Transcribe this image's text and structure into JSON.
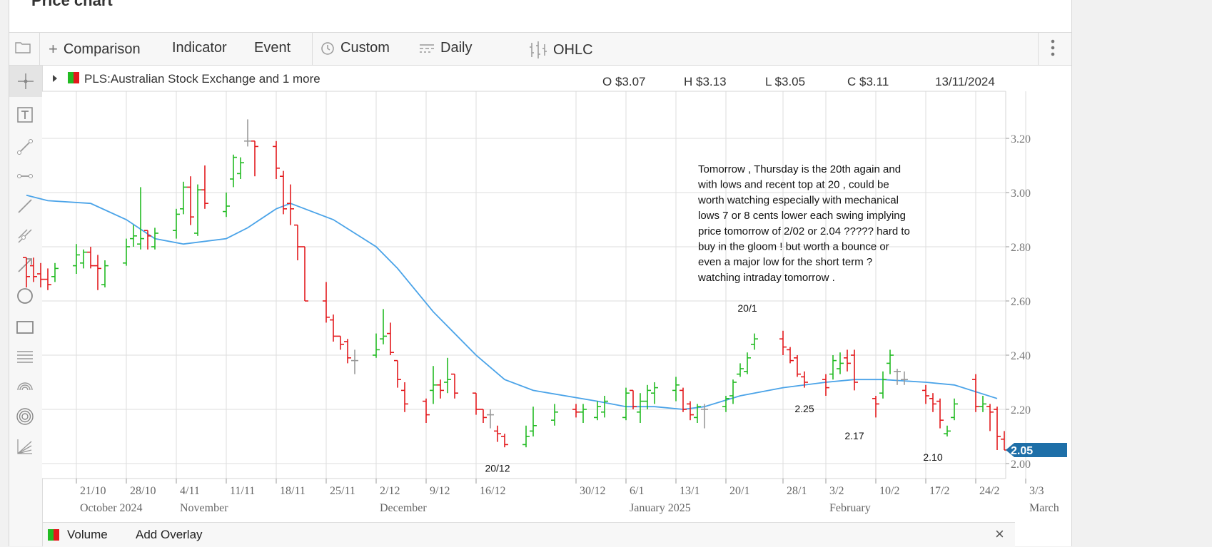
{
  "page": {
    "title": "Price chart"
  },
  "toolbar": {
    "comparison": "Comparison",
    "indicator": "Indicator",
    "event": "Event",
    "custom": "Custom",
    "daily": "Daily",
    "ohlc": "OHLC"
  },
  "legend": {
    "symbol": "PLS:Australian Stock Exchange and 1 more",
    "open": "O $3.07",
    "high": "H $3.13",
    "low": "L $3.05",
    "close": "C $3.11",
    "date": "13/11/2024"
  },
  "bottom": {
    "volume": "Volume",
    "add_overlay": "Add Overlay"
  },
  "colors": {
    "up": "#22bb22",
    "down": "#e3191c",
    "neutral": "#999999",
    "ma": "#4aa3e8",
    "last_price_bg": "#1e6fa8"
  },
  "chart_data": {
    "type": "ohlc",
    "frequency": "daily",
    "last_price": "2.05",
    "y_ticks": [
      "3.20",
      "3.00",
      "2.80",
      "2.60",
      "2.40",
      "2.20",
      "2.00"
    ],
    "ylim": [
      1.95,
      3.35
    ],
    "x_ticks": [
      {
        "label": "21/10",
        "date": "2024-10-21"
      },
      {
        "label": "28/10",
        "date": "2024-10-28"
      },
      {
        "label": "4/11",
        "date": "2024-11-04"
      },
      {
        "label": "11/11",
        "date": "2024-11-11"
      },
      {
        "label": "18/11",
        "date": "2024-11-18"
      },
      {
        "label": "25/11",
        "date": "2024-11-25"
      },
      {
        "label": "2/12",
        "date": "2024-12-02"
      },
      {
        "label": "9/12",
        "date": "2024-12-09"
      },
      {
        "label": "16/12",
        "date": "2024-12-16"
      },
      {
        "label": "30/12",
        "date": "2024-12-30"
      },
      {
        "label": "6/1",
        "date": "2025-01-06"
      },
      {
        "label": "13/1",
        "date": "2025-01-13"
      },
      {
        "label": "20/1",
        "date": "2025-01-20"
      },
      {
        "label": "28/1",
        "date": "2025-01-28"
      },
      {
        "label": "3/2",
        "date": "2025-02-03"
      },
      {
        "label": "10/2",
        "date": "2025-02-10"
      },
      {
        "label": "17/2",
        "date": "2025-02-17"
      },
      {
        "label": "24/2",
        "date": "2025-02-24"
      },
      {
        "label": "3/3",
        "date": "2025-03-03"
      }
    ],
    "month_labels": [
      {
        "label": "October 2024",
        "date": "2024-10-21"
      },
      {
        "label": "November",
        "date": "2024-11-04"
      },
      {
        "label": "December",
        "date": "2024-12-02"
      },
      {
        "label": "January 2025",
        "date": "2025-01-06"
      },
      {
        "label": "February",
        "date": "2025-02-03"
      },
      {
        "label": "March",
        "date": "2025-03-03"
      }
    ],
    "bars": [
      {
        "d": "2024-10-14",
        "o": 2.76,
        "h": 2.76,
        "l": 2.65,
        "c": 2.69
      },
      {
        "d": "2024-10-15",
        "o": 2.73,
        "h": 2.76,
        "l": 2.67,
        "c": 2.69
      },
      {
        "d": "2024-10-16",
        "o": 2.7,
        "h": 2.74,
        "l": 2.65,
        "c": 2.68
      },
      {
        "d": "2024-10-17",
        "o": 2.68,
        "h": 2.72,
        "l": 2.64,
        "c": 2.66
      },
      {
        "d": "2024-10-18",
        "o": 2.69,
        "h": 2.74,
        "l": 2.67,
        "c": 2.72
      },
      {
        "d": "2024-10-21",
        "o": 2.73,
        "h": 2.81,
        "l": 2.7,
        "c": 2.77
      },
      {
        "d": "2024-10-22",
        "o": 2.74,
        "h": 2.79,
        "l": 2.72,
        "c": 2.78
      },
      {
        "d": "2024-10-23",
        "o": 2.78,
        "h": 2.8,
        "l": 2.72,
        "c": 2.73
      },
      {
        "d": "2024-10-24",
        "o": 2.73,
        "h": 2.77,
        "l": 2.64,
        "c": 2.72
      },
      {
        "d": "2024-10-25",
        "o": 2.66,
        "h": 2.75,
        "l": 2.65,
        "c": 2.73
      },
      {
        "d": "2024-10-28",
        "o": 2.74,
        "h": 2.83,
        "l": 2.73,
        "c": 2.8
      },
      {
        "d": "2024-10-29",
        "o": 2.83,
        "h": 2.88,
        "l": 2.8,
        "c": 2.84
      },
      {
        "d": "2024-10-30",
        "o": 2.81,
        "h": 3.02,
        "l": 2.79,
        "c": 2.83
      },
      {
        "d": "2024-10-31",
        "o": 2.86,
        "h": 2.86,
        "l": 2.79,
        "c": 2.84
      },
      {
        "d": "2024-11-01",
        "o": 2.8,
        "h": 2.87,
        "l": 2.79,
        "c": 2.85
      },
      {
        "d": "2024-11-04",
        "o": 2.86,
        "h": 2.94,
        "l": 2.83,
        "c": 2.92
      },
      {
        "d": "2024-11-05",
        "o": 2.94,
        "h": 3.04,
        "l": 2.92,
        "c": 3.02
      },
      {
        "d": "2024-11-06",
        "o": 3.02,
        "h": 3.06,
        "l": 2.88,
        "c": 2.91
      },
      {
        "d": "2024-11-07",
        "o": 2.85,
        "h": 3.03,
        "l": 2.84,
        "c": 3.01
      },
      {
        "d": "2024-11-08",
        "o": 3.01,
        "h": 3.1,
        "l": 2.94,
        "c": 2.96
      },
      {
        "d": "2024-11-11",
        "o": 2.93,
        "h": 3.0,
        "l": 2.91,
        "c": 2.95
      },
      {
        "d": "2024-11-12",
        "o": 3.05,
        "h": 3.14,
        "l": 3.02,
        "c": 3.13
      },
      {
        "d": "2024-11-13",
        "o": 3.07,
        "h": 3.13,
        "l": 3.05,
        "c": 3.11
      },
      {
        "d": "2024-11-14",
        "o": 3.19,
        "h": 3.27,
        "l": 3.17,
        "c": 3.19
      },
      {
        "d": "2024-11-15",
        "o": 3.19,
        "h": 3.19,
        "l": 3.06,
        "c": 3.17
      },
      {
        "d": "2024-11-18",
        "o": 3.17,
        "h": 3.19,
        "l": 3.05,
        "c": 3.09
      },
      {
        "d": "2024-11-19",
        "o": 3.06,
        "h": 3.08,
        "l": 2.92,
        "c": 2.94
      },
      {
        "d": "2024-11-20",
        "o": 2.96,
        "h": 3.03,
        "l": 2.88,
        "c": 2.94
      },
      {
        "d": "2024-11-21",
        "o": 2.88,
        "h": 2.88,
        "l": 2.75,
        "c": 2.8
      },
      {
        "d": "2024-11-22",
        "o": 2.8,
        "h": 2.8,
        "l": 2.6,
        "c": 2.6
      },
      {
        "d": "2024-11-25",
        "o": 2.6,
        "h": 2.67,
        "l": 2.52,
        "c": 2.54
      },
      {
        "d": "2024-11-26",
        "o": 2.53,
        "h": 2.55,
        "l": 2.45,
        "c": 2.47
      },
      {
        "d": "2024-11-27",
        "o": 2.47,
        "h": 2.47,
        "l": 2.42,
        "c": 2.44
      },
      {
        "d": "2024-11-28",
        "o": 2.45,
        "h": 2.46,
        "l": 2.37,
        "c": 2.39
      },
      {
        "d": "2024-11-29",
        "o": 2.38,
        "h": 2.42,
        "l": 2.33,
        "c": 2.38
      },
      {
        "d": "2024-12-02",
        "o": 2.4,
        "h": 2.48,
        "l": 2.39,
        "c": 2.42
      },
      {
        "d": "2024-12-03",
        "o": 2.46,
        "h": 2.57,
        "l": 2.44,
        "c": 2.47
      },
      {
        "d": "2024-12-04",
        "o": 2.48,
        "h": 2.52,
        "l": 2.4,
        "c": 2.41
      },
      {
        "d": "2024-12-05",
        "o": 2.38,
        "h": 2.38,
        "l": 2.28,
        "c": 2.31
      },
      {
        "d": "2024-12-06",
        "o": 2.27,
        "h": 2.3,
        "l": 2.19,
        "c": 2.22
      },
      {
        "d": "2024-12-09",
        "o": 2.23,
        "h": 2.24,
        "l": 2.15,
        "c": 2.18
      },
      {
        "d": "2024-12-10",
        "o": 2.27,
        "h": 2.36,
        "l": 2.22,
        "c": 2.29
      },
      {
        "d": "2024-12-11",
        "o": 2.29,
        "h": 2.31,
        "l": 2.24,
        "c": 2.27
      },
      {
        "d": "2024-12-12",
        "o": 2.3,
        "h": 2.39,
        "l": 2.26,
        "c": 2.31
      },
      {
        "d": "2024-12-13",
        "o": 2.33,
        "h": 2.33,
        "l": 2.24,
        "c": 2.26
      },
      {
        "d": "2024-12-16",
        "o": 2.26,
        "h": 2.26,
        "l": 2.18,
        "c": 2.2
      },
      {
        "d": "2024-12-17",
        "o": 2.2,
        "h": 2.2,
        "l": 2.15,
        "c": 2.17
      },
      {
        "d": "2024-12-18",
        "o": 2.18,
        "h": 2.2,
        "l": 2.13,
        "c": 2.18
      },
      {
        "d": "2024-12-19",
        "o": 2.12,
        "h": 2.14,
        "l": 2.08,
        "c": 2.11
      },
      {
        "d": "2024-12-20",
        "o": 2.1,
        "h": 2.11,
        "l": 2.06,
        "c": 2.07
      },
      {
        "d": "2024-12-23",
        "o": 2.07,
        "h": 2.14,
        "l": 2.06,
        "c": 2.1
      },
      {
        "d": "2024-12-24",
        "o": 2.12,
        "h": 2.21,
        "l": 2.1,
        "c": 2.14
      },
      {
        "d": "2024-12-27",
        "o": 2.16,
        "h": 2.22,
        "l": 2.14,
        "c": 2.19
      },
      {
        "d": "2024-12-30",
        "o": 2.2,
        "h": 2.22,
        "l": 2.17,
        "c": 2.19
      },
      {
        "d": "2024-12-31",
        "o": 2.19,
        "h": 2.22,
        "l": 2.15,
        "c": 2.2
      },
      {
        "d": "2025-01-02",
        "o": 2.17,
        "h": 2.23,
        "l": 2.16,
        "c": 2.21
      },
      {
        "d": "2025-01-03",
        "o": 2.19,
        "h": 2.25,
        "l": 2.17,
        "c": 2.23
      },
      {
        "d": "2025-01-06",
        "o": 2.17,
        "h": 2.28,
        "l": 2.16,
        "c": 2.26
      },
      {
        "d": "2025-01-07",
        "o": 2.27,
        "h": 2.27,
        "l": 2.2,
        "c": 2.21
      },
      {
        "d": "2025-01-08",
        "o": 2.19,
        "h": 2.26,
        "l": 2.15,
        "c": 2.23
      },
      {
        "d": "2025-01-09",
        "o": 2.23,
        "h": 2.29,
        "l": 2.2,
        "c": 2.27
      },
      {
        "d": "2025-01-10",
        "o": 2.26,
        "h": 2.3,
        "l": 2.22,
        "c": 2.28
      },
      {
        "d": "2025-01-13",
        "o": 2.27,
        "h": 2.32,
        "l": 2.23,
        "c": 2.29
      },
      {
        "d": "2025-01-14",
        "o": 2.27,
        "h": 2.28,
        "l": 2.19,
        "c": 2.2
      },
      {
        "d": "2025-01-15",
        "o": 2.22,
        "h": 2.23,
        "l": 2.16,
        "c": 2.18
      },
      {
        "d": "2025-01-16",
        "o": 2.17,
        "h": 2.22,
        "l": 2.15,
        "c": 2.21
      },
      {
        "d": "2025-01-17",
        "o": 2.2,
        "h": 2.22,
        "l": 2.13,
        "c": 2.2
      },
      {
        "d": "2025-01-20",
        "o": 2.21,
        "h": 2.25,
        "l": 2.19,
        "c": 2.24
      },
      {
        "d": "2025-01-21",
        "o": 2.25,
        "h": 2.31,
        "l": 2.22,
        "c": 2.3
      },
      {
        "d": "2025-01-22",
        "o": 2.33,
        "h": 2.37,
        "l": 2.32,
        "c": 2.35
      },
      {
        "d": "2025-01-23",
        "o": 2.34,
        "h": 2.41,
        "l": 2.33,
        "c": 2.39
      },
      {
        "d": "2025-01-24",
        "o": 2.44,
        "h": 2.48,
        "l": 2.42,
        "c": 2.46
      },
      {
        "d": "2025-01-28",
        "o": 2.46,
        "h": 2.49,
        "l": 2.4,
        "c": 2.43
      },
      {
        "d": "2025-01-29",
        "o": 2.42,
        "h": 2.43,
        "l": 2.37,
        "c": 2.38
      },
      {
        "d": "2025-01-30",
        "o": 2.39,
        "h": 2.4,
        "l": 2.32,
        "c": 2.33
      },
      {
        "d": "2025-01-31",
        "o": 2.32,
        "h": 2.34,
        "l": 2.28,
        "c": 2.3
      },
      {
        "d": "2025-02-03",
        "o": 2.31,
        "h": 2.33,
        "l": 2.25,
        "c": 2.28
      },
      {
        "d": "2025-02-04",
        "o": 2.33,
        "h": 2.4,
        "l": 2.31,
        "c": 2.38
      },
      {
        "d": "2025-02-05",
        "o": 2.35,
        "h": 2.41,
        "l": 2.33,
        "c": 2.37
      },
      {
        "d": "2025-02-06",
        "o": 2.39,
        "h": 2.42,
        "l": 2.34,
        "c": 2.37
      },
      {
        "d": "2025-02-07",
        "o": 2.4,
        "h": 2.42,
        "l": 2.27,
        "c": 2.3
      },
      {
        "d": "2025-02-10",
        "o": 2.24,
        "h": 2.25,
        "l": 2.17,
        "c": 2.22
      },
      {
        "d": "2025-02-11",
        "o": 2.26,
        "h": 2.34,
        "l": 2.24,
        "c": 2.31
      },
      {
        "d": "2025-02-12",
        "o": 2.37,
        "h": 2.42,
        "l": 2.33,
        "c": 2.4
      },
      {
        "d": "2025-02-13",
        "o": 2.34,
        "h": 2.35,
        "l": 2.29,
        "c": 2.34
      },
      {
        "d": "2025-02-14",
        "o": 2.31,
        "h": 2.34,
        "l": 2.29,
        "c": 2.31
      },
      {
        "d": "2025-02-17",
        "o": 2.27,
        "h": 2.29,
        "l": 2.22,
        "c": 2.25
      },
      {
        "d": "2025-02-18",
        "o": 2.24,
        "h": 2.26,
        "l": 2.19,
        "c": 2.22
      },
      {
        "d": "2025-02-19",
        "o": 2.23,
        "h": 2.24,
        "l": 2.13,
        "c": 2.16
      },
      {
        "d": "2025-02-20",
        "o": 2.11,
        "h": 2.14,
        "l": 2.1,
        "c": 2.12
      },
      {
        "d": "2025-02-21",
        "o": 2.17,
        "h": 2.24,
        "l": 2.16,
        "c": 2.22
      },
      {
        "d": "2025-02-24",
        "o": 2.31,
        "h": 2.33,
        "l": 2.19,
        "c": 2.21
      },
      {
        "d": "2025-02-25",
        "o": 2.21,
        "h": 2.25,
        "l": 2.19,
        "c": 2.22
      },
      {
        "d": "2025-02-26",
        "o": 2.21,
        "h": 2.22,
        "l": 2.12,
        "c": 2.19
      },
      {
        "d": "2025-02-27",
        "o": 2.2,
        "h": 2.21,
        "l": 2.05,
        "c": 2.1
      },
      {
        "d": "2025-02-28",
        "o": 2.09,
        "h": 2.12,
        "l": 2.05,
        "c": 2.05
      }
    ],
    "moving_average": [
      {
        "d": "2024-10-14",
        "v": 2.99
      },
      {
        "d": "2024-10-17",
        "v": 2.97
      },
      {
        "d": "2024-10-23",
        "v": 2.96
      },
      {
        "d": "2024-10-28",
        "v": 2.9
      },
      {
        "d": "2024-11-01",
        "v": 2.83
      },
      {
        "d": "2024-11-05",
        "v": 2.81
      },
      {
        "d": "2024-11-11",
        "v": 2.83
      },
      {
        "d": "2024-11-14",
        "v": 2.87
      },
      {
        "d": "2024-11-18",
        "v": 2.94
      },
      {
        "d": "2024-11-20",
        "v": 2.96
      },
      {
        "d": "2024-11-22",
        "v": 2.94
      },
      {
        "d": "2024-11-26",
        "v": 2.9
      },
      {
        "d": "2024-12-02",
        "v": 2.8
      },
      {
        "d": "2024-12-05",
        "v": 2.72
      },
      {
        "d": "2024-12-10",
        "v": 2.56
      },
      {
        "d": "2024-12-16",
        "v": 2.4
      },
      {
        "d": "2024-12-20",
        "v": 2.31
      },
      {
        "d": "2024-12-24",
        "v": 2.27
      },
      {
        "d": "2025-01-02",
        "v": 2.23
      },
      {
        "d": "2025-01-06",
        "v": 2.21
      },
      {
        "d": "2025-01-10",
        "v": 2.21
      },
      {
        "d": "2025-01-14",
        "v": 2.2
      },
      {
        "d": "2025-01-17",
        "v": 2.21
      },
      {
        "d": "2025-01-22",
        "v": 2.25
      },
      {
        "d": "2025-01-28",
        "v": 2.28
      },
      {
        "d": "2025-02-03",
        "v": 2.3
      },
      {
        "d": "2025-02-07",
        "v": 2.31
      },
      {
        "d": "2025-02-11",
        "v": 2.31
      },
      {
        "d": "2025-02-17",
        "v": 2.3
      },
      {
        "d": "2025-02-21",
        "v": 2.29
      },
      {
        "d": "2025-02-27",
        "v": 2.24
      }
    ],
    "annotations": [
      {
        "text": "20/12",
        "d": "2024-12-19",
        "v": 1.97
      },
      {
        "text": "20/1",
        "d": "2025-01-23",
        "v": 2.56
      },
      {
        "text": "2.25",
        "d": "2025-01-31",
        "v": 2.19
      },
      {
        "text": "2.17",
        "d": "2025-02-07",
        "v": 2.09
      },
      {
        "text": "2.10",
        "d": "2025-02-18",
        "v": 2.01
      }
    ],
    "note_lines": [
      "Tomorrow , Thursday is the 20th again and",
      "with lows and recent top at 20 , could be",
      "worth watching especially with mechanical",
      "lows 7 or 8 cents lower each swing implying",
      "price tomorrow of 2/02 or 2.04 ????? hard to",
      "buy in the gloom ! but worth a bounce or",
      "even a major low for the short term ?",
      "watching intraday tomorrow ."
    ]
  }
}
